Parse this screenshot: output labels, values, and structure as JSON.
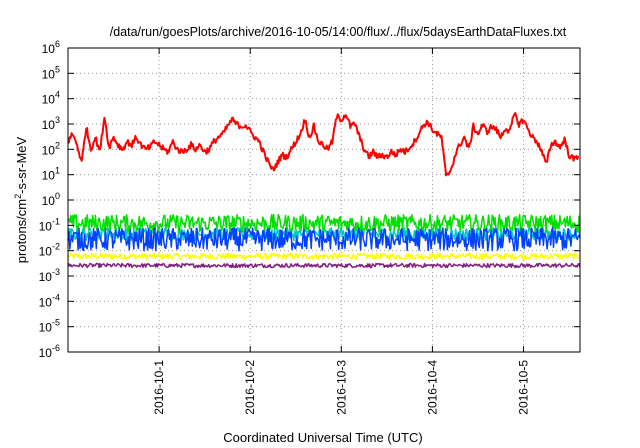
{
  "chart_data": {
    "type": "line",
    "title": "/data/run/goesPlots/archive/2016-10-05/14:00/flux/../flux/5daysEarthDataFluxes.txt",
    "xlabel": "Coordinated Universal Time (UTC)",
    "ylabel": "protons/cm²-s-sr-MeV",
    "ylabel_parts": {
      "pre": "protons/cm",
      "sup": "2",
      "post": "-s-sr-MeV"
    },
    "yscale": "log",
    "ylim": [
      1e-06,
      1000000.0
    ],
    "xlim": [
      0,
      5.62
    ],
    "grid": true,
    "x_tick_labels": [
      "2016-10-1",
      "2016-10-2",
      "2016-10-3",
      "2016-10-4",
      "2016-10-5"
    ],
    "x_tick_positions": [
      1,
      2,
      3,
      4,
      5
    ],
    "y_ticks": [
      {
        "exp": -6,
        "label_base": "10",
        "label_exp": "-6"
      },
      {
        "exp": -5,
        "label_base": "10",
        "label_exp": "-5"
      },
      {
        "exp": -4,
        "label_base": "10",
        "label_exp": "-4"
      },
      {
        "exp": -3,
        "label_base": "10",
        "label_exp": "-3"
      },
      {
        "exp": -2,
        "label_base": "10",
        "label_exp": "-2"
      },
      {
        "exp": -1,
        "label_base": "10",
        "label_exp": "-1"
      },
      {
        "exp": 0,
        "label_base": "10",
        "label_exp": "0"
      },
      {
        "exp": 1,
        "label_base": "10",
        "label_exp": "1"
      },
      {
        "exp": 2,
        "label_base": "10",
        "label_exp": "2"
      },
      {
        "exp": 3,
        "label_base": "10",
        "label_exp": "3"
      },
      {
        "exp": 4,
        "label_base": "10",
        "label_exp": "4"
      },
      {
        "exp": 5,
        "label_base": "10",
        "label_exp": "5"
      },
      {
        "exp": 6,
        "label_base": "10",
        "label_exp": "6"
      }
    ],
    "series": [
      {
        "color": "#ff0000",
        "noise": 0.12,
        "points": [
          [
            0.0,
            200
          ],
          [
            0.05,
            400
          ],
          [
            0.1,
            150
          ],
          [
            0.15,
            30
          ],
          [
            0.2,
            800
          ],
          [
            0.25,
            100
          ],
          [
            0.3,
            300
          ],
          [
            0.35,
            80
          ],
          [
            0.4,
            2000
          ],
          [
            0.45,
            120
          ],
          [
            0.5,
            300
          ],
          [
            0.55,
            150
          ],
          [
            0.6,
            100
          ],
          [
            0.65,
            200
          ],
          [
            0.7,
            150
          ],
          [
            0.75,
            300
          ],
          [
            0.8,
            150
          ],
          [
            0.85,
            100
          ],
          [
            0.9,
            120
          ],
          [
            0.95,
            200
          ],
          [
            1.0,
            150
          ],
          [
            1.05,
            100
          ],
          [
            1.1,
            80
          ],
          [
            1.15,
            200
          ],
          [
            1.2,
            100
          ],
          [
            1.25,
            80
          ],
          [
            1.3,
            100
          ],
          [
            1.35,
            150
          ],
          [
            1.4,
            100
          ],
          [
            1.45,
            150
          ],
          [
            1.5,
            80
          ],
          [
            1.55,
            100
          ],
          [
            1.6,
            200
          ],
          [
            1.65,
            300
          ],
          [
            1.7,
            400
          ],
          [
            1.75,
            800
          ],
          [
            1.8,
            1500
          ],
          [
            1.85,
            1000
          ],
          [
            1.9,
            800
          ],
          [
            1.95,
            900
          ],
          [
            2.0,
            500
          ],
          [
            2.05,
            300
          ],
          [
            2.1,
            200
          ],
          [
            2.15,
            70
          ],
          [
            2.2,
            30
          ],
          [
            2.25,
            15
          ],
          [
            2.3,
            30
          ],
          [
            2.35,
            60
          ],
          [
            2.4,
            50
          ],
          [
            2.45,
            100
          ],
          [
            2.5,
            200
          ],
          [
            2.55,
            400
          ],
          [
            2.6,
            1500
          ],
          [
            2.65,
            300
          ],
          [
            2.7,
            800
          ],
          [
            2.75,
            200
          ],
          [
            2.8,
            150
          ],
          [
            2.85,
            100
          ],
          [
            2.9,
            200
          ],
          [
            2.95,
            2000
          ],
          [
            3.0,
            1500
          ],
          [
            3.05,
            2500
          ],
          [
            3.1,
            800
          ],
          [
            3.15,
            1000
          ],
          [
            3.2,
            300
          ],
          [
            3.25,
            100
          ],
          [
            3.3,
            50
          ],
          [
            3.35,
            80
          ],
          [
            3.4,
            50
          ],
          [
            3.45,
            60
          ],
          [
            3.5,
            50
          ],
          [
            3.55,
            80
          ],
          [
            3.6,
            60
          ],
          [
            3.65,
            100
          ],
          [
            3.7,
            80
          ],
          [
            3.75,
            120
          ],
          [
            3.8,
            200
          ],
          [
            3.85,
            400
          ],
          [
            3.9,
            900
          ],
          [
            3.95,
            1200
          ],
          [
            4.0,
            600
          ],
          [
            4.05,
            400
          ],
          [
            4.1,
            300
          ],
          [
            4.15,
            8
          ],
          [
            4.2,
            15
          ],
          [
            4.25,
            60
          ],
          [
            4.3,
            150
          ],
          [
            4.35,
            300
          ],
          [
            4.4,
            100
          ],
          [
            4.45,
            800
          ],
          [
            4.5,
            400
          ],
          [
            4.55,
            900
          ],
          [
            4.6,
            500
          ],
          [
            4.65,
            800
          ],
          [
            4.7,
            600
          ],
          [
            4.75,
            300
          ],
          [
            4.8,
            700
          ],
          [
            4.85,
            500
          ],
          [
            4.9,
            2500
          ],
          [
            4.95,
            1000
          ],
          [
            5.0,
            1500
          ],
          [
            5.05,
            600
          ],
          [
            5.1,
            300
          ],
          [
            5.15,
            200
          ],
          [
            5.2,
            80
          ],
          [
            5.25,
            25
          ],
          [
            5.3,
            150
          ],
          [
            5.35,
            200
          ],
          [
            5.4,
            120
          ],
          [
            5.45,
            250
          ],
          [
            5.5,
            60
          ],
          [
            5.55,
            40
          ],
          [
            5.6,
            55
          ]
        ]
      },
      {
        "color": "#00e000",
        "base": 0.12,
        "noise": 0.35,
        "points": []
      },
      {
        "color": "#00c8c8",
        "base": 0.045,
        "noise": 0.25,
        "points": []
      },
      {
        "color": "#0040ff",
        "base": 0.028,
        "noise": 0.45,
        "points": []
      },
      {
        "color": "#ffff00",
        "base": 0.006,
        "noise": 0.12,
        "points": []
      },
      {
        "color": "#7f1f7f",
        "base": 0.0026,
        "noise": 0.08,
        "points": []
      }
    ]
  }
}
